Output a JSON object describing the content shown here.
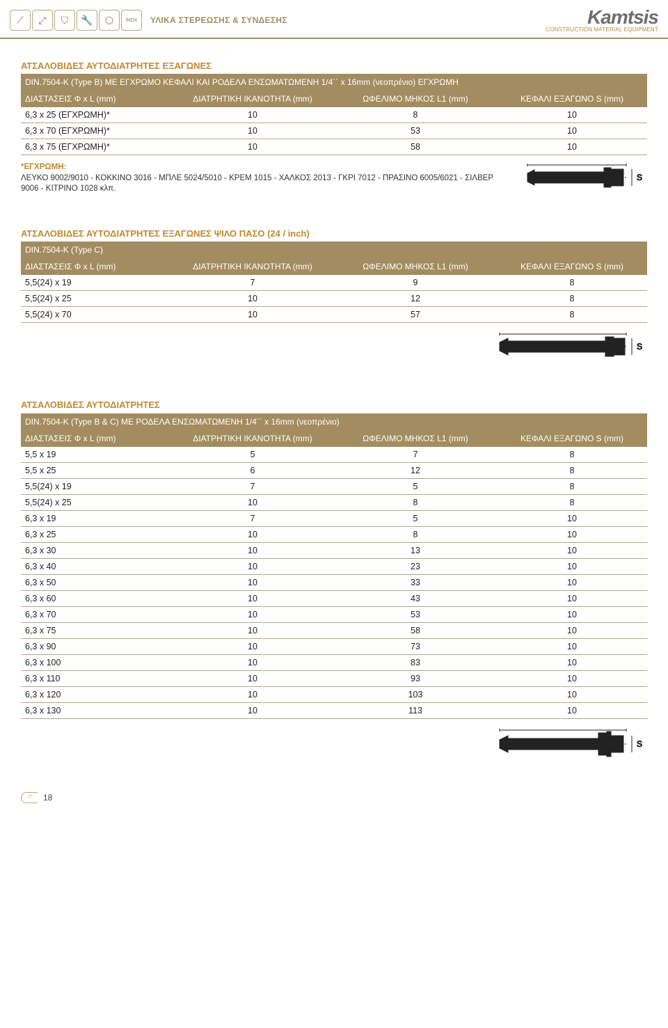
{
  "header": {
    "category_label": "ΥΛΙΚΑ ΣΤΕΡΕΩΣΗΣ & ΣΥΝΔΕΣΗΣ",
    "brand_name": "Kamtsis",
    "brand_sub": "CONSTRUCTION MATERIAL EQUIPMENT",
    "icons": [
      "screw-icon",
      "nail-icon",
      "drill-icon",
      "wrench-icon",
      "nut-icon",
      "inox-icon"
    ]
  },
  "columns": {
    "c1": "ΔΙΑΣΤΑΣΕΙΣ Φ x L (mm)",
    "c2": "ΔΙΑΤΡΗΤΙΚΗ ΙΚΑΝΟΤΗΤΑ (mm)",
    "c3": "ΩΦΕΛΙΜΟ ΜΗΚΟΣ L1 (mm)",
    "c4": "ΚΕΦΑΛΙ ΕΞΑΓΩΝΟ S (mm)"
  },
  "section1": {
    "title_a": "ΑΤΣΑΛΟΒΙΔΕΣ ΑΥΤΟΔΙΑΤΡΗΤΕΣ ΕΞΑΓΩΝΕΣ",
    "title_b": "DIN.7504-K (Type B) ΜΕ ΕΓΧΡΩΜΟ ΚΕΦΑΛΙ ΚΑΙ ΡΟΔΕΛΑ ΕΝΣΩΜΑΤΩΜΕΝΗ 1/4´´ x 16mm (νεοπρένιο) ΕΓΧΡΩΜΗ",
    "rows": [
      [
        "6,3 x 25 (ΕΓΧΡΩΜΗ)*",
        "10",
        "8",
        "10"
      ],
      [
        "6,3 x 70 (ΕΓΧΡΩΜΗ)*",
        "10",
        "53",
        "10"
      ],
      [
        "6,3 x 75 (ΕΓΧΡΩΜΗ)*",
        "10",
        "58",
        "10"
      ]
    ],
    "footnote_head": "*ΕΓΧΡΩΜΗ:",
    "footnote_body": "ΛΕΥΚΟ 9002/9010 - ΚΟΚΚΙΝΟ 3016 - ΜΠΛΕ 5024/5010 - ΚΡΕΜ 1015 - ΧΑΛΚΟΣ 2013 - ΓΚΡΙ 7012 - ΠΡΑΣΙΝΟ 6005/6021 - ΣΙΛΒΕΡ 9006 - ΚΙΤΡΙΝΟ 1028 κλπ."
  },
  "section2": {
    "title_a": "ΑΤΣΑΛΟΒΙΔΕΣ ΑΥΤΟΔΙΑΤΡΗΤΕΣ ΕΞΑΓΩΝΕΣ ΨΙΛΟ ΠΑΣΟ (24 / inch)",
    "title_b": "DIN.7504-K (Type C)",
    "rows": [
      [
        "5,5(24) x 19",
        "7",
        "9",
        "8"
      ],
      [
        "5,5(24) x 25",
        "10",
        "12",
        "8"
      ],
      [
        "5,5(24) x 70",
        "10",
        "57",
        "8"
      ]
    ]
  },
  "section3": {
    "title_a": "ΑΤΣΑΛΟΒΙΔΕΣ ΑΥΤΟΔΙΑΤΡΗΤΕΣ",
    "title_b": "DIN.7504-K (Type B & C) ΜΕ ΡΟΔΕΛΑ ΕΝΣΩΜΑΤΩΜΕΝΗ 1/4´´ x 16mm (νεοπρένιο)",
    "rows": [
      [
        "5,5 x 19",
        "5",
        "7",
        "8"
      ],
      [
        "5,5 x 25",
        "6",
        "12",
        "8"
      ],
      [
        "5,5(24) x 19",
        "7",
        "5",
        "8"
      ],
      [
        "5,5(24) x 25",
        "10",
        "8",
        "8"
      ],
      [
        "6,3 x 19",
        "7",
        "5",
        "10"
      ],
      [
        "6,3 x 25",
        "10",
        "8",
        "10"
      ],
      [
        "6,3 x 30",
        "10",
        "13",
        "10"
      ],
      [
        "6,3 x 40",
        "10",
        "23",
        "10"
      ],
      [
        "6,3 x 50",
        "10",
        "33",
        "10"
      ],
      [
        "6,3 x 60",
        "10",
        "43",
        "10"
      ],
      [
        "6,3 x 70",
        "10",
        "53",
        "10"
      ],
      [
        "6,3 x 75",
        "10",
        "58",
        "10"
      ],
      [
        "6,3 x 90",
        "10",
        "73",
        "10"
      ],
      [
        "6,3 x 100",
        "10",
        "83",
        "10"
      ],
      [
        "6,3 x 110",
        "10",
        "93",
        "10"
      ],
      [
        "6,3 x 120",
        "10",
        "103",
        "10"
      ],
      [
        "6,3 x 130",
        "10",
        "113",
        "10"
      ]
    ]
  },
  "page_number": "18",
  "style": {
    "header_bg": "#a38c5f",
    "row_border": "#b8a77d",
    "title_orange": "#c08a2c",
    "text": "#222222",
    "col_widths_pct": [
      24,
      26,
      26,
      24
    ]
  }
}
